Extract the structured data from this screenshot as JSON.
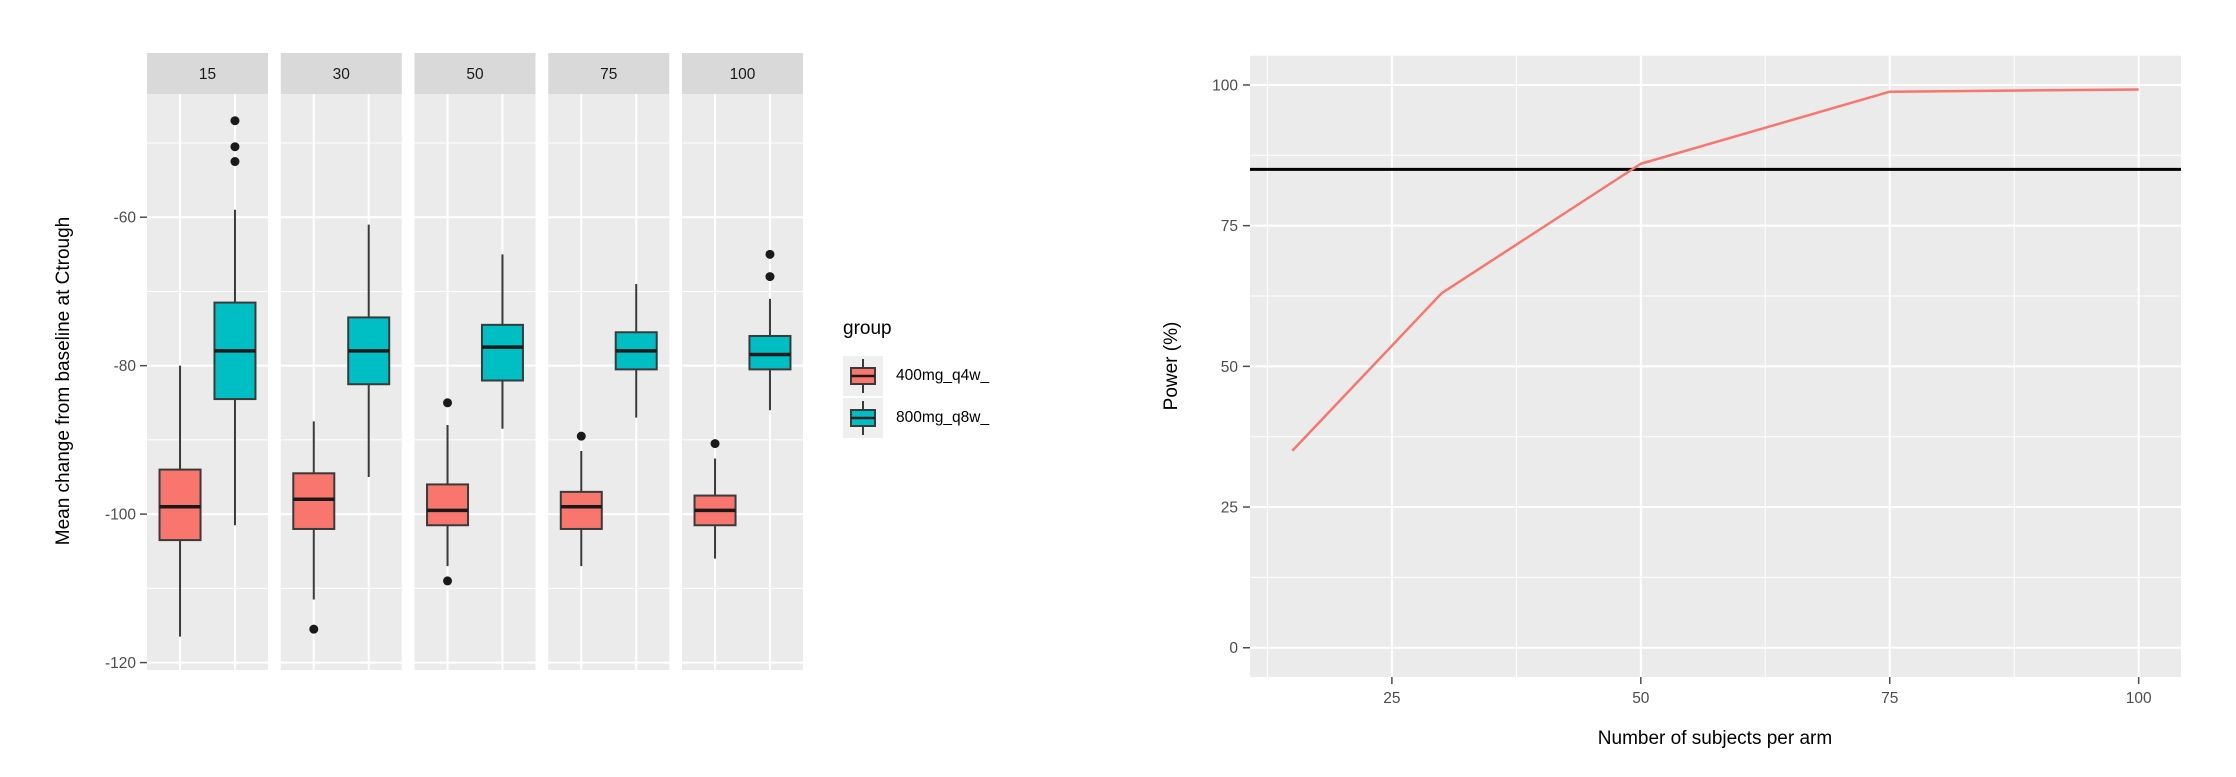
{
  "colors": {
    "group1": "#F8766D",
    "group2": "#00BFC4",
    "panel_bg": "#EBEBEB",
    "strip_bg": "#D9D9D9",
    "grid": "#FFFFFF",
    "box_border": "#3A3A3A",
    "median_line": "#1A1A1A",
    "outlier": "#1A1A1A",
    "tick_text": "#4D4D4D",
    "strip_text": "#1A1A1A",
    "target_line": "#000000",
    "legend_key_bg": "#EFEFEF"
  },
  "chart_data": [
    {
      "type": "boxplot",
      "ylabel": "Mean change from baseline at Ctrough",
      "legend_title": "group",
      "yticks": [
        -60,
        -80,
        -100,
        -120
      ],
      "yticks_minor": [
        -50,
        -70,
        -90,
        -110
      ],
      "ylim": [
        -43.4,
        -121
      ],
      "groups": [
        {
          "name": "400mg_q4w_",
          "color": "#F8766D"
        },
        {
          "name": "800mg_q8w_",
          "color": "#00BFC4"
        }
      ],
      "facets": [
        {
          "label": "15",
          "boxes": [
            {
              "whisker_low": -116.5,
              "q1": -103.5,
              "median": -99,
              "q3": -94,
              "whisker_high": -80,
              "outliers": []
            },
            {
              "whisker_low": -101.5,
              "q1": -84.5,
              "median": -78,
              "q3": -71.5,
              "whisker_high": -59,
              "outliers": [
                -47,
                -50.5,
                -52.5
              ]
            }
          ]
        },
        {
          "label": "30",
          "boxes": [
            {
              "whisker_low": -111.5,
              "q1": -102,
              "median": -98,
              "q3": -94.5,
              "whisker_high": -87.5,
              "outliers": [
                -115.5
              ]
            },
            {
              "whisker_low": -95,
              "q1": -82.5,
              "median": -78,
              "q3": -73.5,
              "whisker_high": -61,
              "outliers": []
            }
          ]
        },
        {
          "label": "50",
          "boxes": [
            {
              "whisker_low": -107,
              "q1": -101.5,
              "median": -99.5,
              "q3": -96,
              "whisker_high": -88,
              "outliers": [
                -85,
                -109
              ]
            },
            {
              "whisker_low": -88.5,
              "q1": -82,
              "median": -77.5,
              "q3": -74.5,
              "whisker_high": -65,
              "outliers": []
            }
          ]
        },
        {
          "label": "75",
          "boxes": [
            {
              "whisker_low": -107,
              "q1": -102,
              "median": -99,
              "q3": -97,
              "whisker_high": -91.5,
              "outliers": [
                -89.5
              ]
            },
            {
              "whisker_low": -87,
              "q1": -80.5,
              "median": -78,
              "q3": -75.5,
              "whisker_high": -69,
              "outliers": []
            }
          ]
        },
        {
          "label": "100",
          "boxes": [
            {
              "whisker_low": -106,
              "q1": -101.5,
              "median": -99.5,
              "q3": -97.5,
              "whisker_high": -92.5,
              "outliers": [
                -90.5
              ]
            },
            {
              "whisker_low": -86,
              "q1": -80.5,
              "median": -78.5,
              "q3": -76,
              "whisker_high": -71,
              "outliers": [
                -65,
                -68
              ]
            }
          ]
        }
      ]
    },
    {
      "type": "line",
      "xlabel": "Number of subjects per arm",
      "ylabel": "Power (%)",
      "x": [
        15,
        30,
        50,
        75,
        100
      ],
      "y": [
        35,
        63,
        86,
        98.8,
        99.2
      ],
      "series_color": "#F8766D",
      "target_power": 85,
      "xticks": [
        25,
        50,
        75,
        100
      ],
      "xticks_minor": [
        12.5,
        37.5,
        62.5,
        87.5
      ],
      "yticks": [
        0,
        25,
        50,
        75,
        100
      ],
      "yticks_minor": [
        12.5,
        37.5,
        62.5,
        87.5
      ],
      "xlim": [
        10.75,
        104.25
      ],
      "ylim": [
        -5.2,
        105.2
      ],
      "legend_position": "none",
      "grid": "on"
    }
  ]
}
